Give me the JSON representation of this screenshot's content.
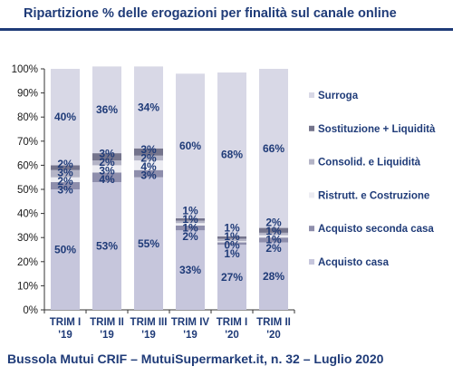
{
  "header": {
    "title": "Ripartizione %  delle erogazioni per finalità sul canale online"
  },
  "footer": {
    "text": "Bussola Mutui CRIF – MutuiSupermarket.it, n. 32 – Luglio 2020"
  },
  "chart_data": {
    "type": "bar",
    "stacked": true,
    "percent": true,
    "categories": [
      [
        "TRIM I",
        "'19"
      ],
      [
        "TRIM II",
        "'19"
      ],
      [
        "TRIM III",
        "'19"
      ],
      [
        "TRIM IV",
        "'19"
      ],
      [
        "TRIM I",
        "'20"
      ],
      [
        "TRIM II",
        "'20"
      ]
    ],
    "yticks": [
      "0%",
      "10%",
      "20%",
      "30%",
      "40%",
      "50%",
      "60%",
      "70%",
      "80%",
      "90%",
      "100%"
    ],
    "ylim": [
      0,
      100
    ],
    "legend_position": "right",
    "series": [
      {
        "name": "Acquisto casa",
        "color": "#c6c6dc",
        "values": [
          50,
          53,
          55,
          33,
          27,
          28
        ],
        "labels": [
          "50%",
          "53%",
          "55%",
          "33%",
          "27%",
          "28%"
        ]
      },
      {
        "name": "Acquisto seconda casa",
        "color": "#8e8eac",
        "values": [
          3,
          4,
          3,
          2,
          1,
          2
        ],
        "labels": [
          "3%",
          "4%",
          "3%",
          "2%",
          "1%",
          "2%"
        ]
      },
      {
        "name": "Ristrutt. e Costruzione",
        "color": "#ececf2",
        "values": [
          2,
          3,
          4,
          1,
          0.5,
          1
        ],
        "labels": [
          "2%",
          "3%",
          "4%",
          "1%",
          "0%",
          "1%"
        ]
      },
      {
        "name": "Consolid. e Liquidità",
        "color": "#b4b4c6",
        "values": [
          3,
          2,
          2,
          1,
          1,
          1
        ],
        "labels": [
          "3%",
          "2%",
          "2%",
          "1%",
          "1%",
          "1%"
        ]
      },
      {
        "name": "Sostituzione + Liquidità",
        "color": "#74748c",
        "values": [
          2,
          3,
          3,
          1,
          1,
          2
        ],
        "labels": [
          "2%",
          "3%",
          "3%",
          "1%",
          "1%",
          "2%"
        ]
      },
      {
        "name": "Surroga",
        "color": "#d8d8e6",
        "values": [
          40,
          36,
          34,
          60,
          68,
          66
        ],
        "labels": [
          "40%",
          "36%",
          "34%",
          "60%",
          "68%",
          "66%"
        ]
      }
    ]
  }
}
